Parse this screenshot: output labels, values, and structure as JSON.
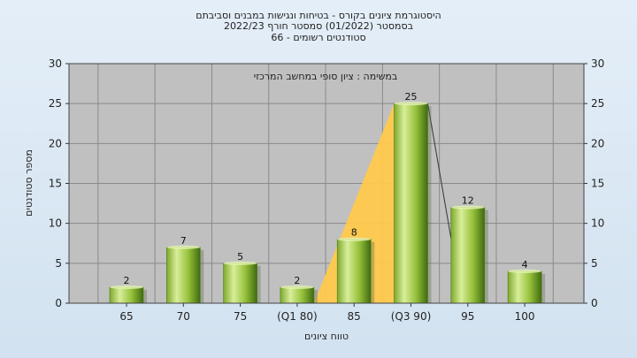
{
  "chart_data": {
    "type": "bar",
    "title_lines": [
      "היסטוגרמת ציונים בקורס - בטיחות ונגישות במבנים וסביבתם",
      "בסמסטר  (01/2022)  סמסטר חורף 2022/23",
      "סטודנטים רשומים - 66"
    ],
    "annotation": "במשימה : ציון סופי במחשב המרכזי",
    "xlabel": "טווח ציונים",
    "ylabel": "מספר סטודנטים",
    "categories": [
      "65",
      "70",
      "75",
      "(Q1 80)",
      "85",
      "(Q3 90)",
      "95",
      "100"
    ],
    "values": [
      2,
      7,
      5,
      2,
      8,
      25,
      12,
      4
    ],
    "ylim": [
      0,
      30
    ],
    "yticks": [
      "0",
      "5",
      "10",
      "15",
      "20",
      "25",
      "30"
    ],
    "grid": true,
    "quartile_band": {
      "from_category": "(Q1 80)",
      "to_category": "(Q3 90)",
      "color": "#ffc94d"
    },
    "colors": {
      "bar_light": "#d8ee9a",
      "bar_mid": "#96c13a",
      "bar_dark": "#3f6a10",
      "plot_bg": "#c0c0c0",
      "page_bg": "#dbe8f4"
    }
  }
}
